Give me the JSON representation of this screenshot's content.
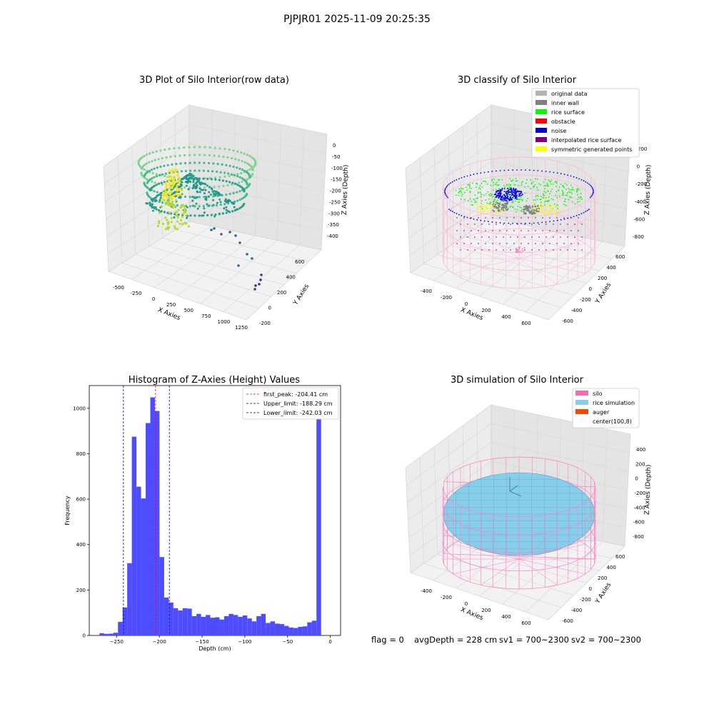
{
  "figure_title": "PJPJR01 2025-11-09 20:25:35",
  "chart_data": [
    {
      "type": "scatter",
      "subtype": "3d",
      "title": "3D Plot of Silo Interior(row data)",
      "xlabel": "X Axies",
      "ylabel": "Y Axies",
      "zlabel": "Z Axies (Depth)",
      "x_ticks": [
        -500,
        -250,
        0,
        250,
        500,
        750,
        1000,
        1250
      ],
      "y_ticks": [
        -200,
        0,
        200,
        400,
        600
      ],
      "z_ticks": [
        0,
        -50,
        -100,
        -150,
        -200,
        -250,
        -300,
        -350,
        -400
      ],
      "colormap": "viridis"
    },
    {
      "type": "scatter",
      "subtype": "3d",
      "title": "3D classify of Silo Interior",
      "xlabel": "X Axies",
      "ylabel": "Y Axies",
      "zlabel": "Z Axies (Depth)",
      "x_ticks": [
        -400,
        -200,
        0,
        200,
        400,
        600
      ],
      "y_ticks": [
        -600,
        -400,
        -200,
        0,
        200,
        400,
        600
      ],
      "z_ticks": [
        200,
        0,
        -200,
        -400,
        -600,
        -800
      ],
      "legend_position": "top-right",
      "legend": [
        {
          "label": "original data",
          "color": "#b3b3b3"
        },
        {
          "label": "inner wall",
          "color": "#808080"
        },
        {
          "label": "rice surface",
          "color": "#00ff00"
        },
        {
          "label": "obstacle",
          "color": "#ff0000"
        },
        {
          "label": "noise",
          "color": "#0000ee"
        },
        {
          "label": "interpolated rice surface",
          "color": "#800080"
        },
        {
          "label": "symmetric generated points",
          "color": "#ffff00"
        }
      ]
    },
    {
      "type": "bar",
      "subtype": "histogram",
      "title": "Histogram of Z-Axies (Height) Values",
      "xlabel": "Depth (cm)",
      "ylabel": "Frequency",
      "xlim": [
        -282,
        12
      ],
      "ylim": [
        0,
        1100
      ],
      "x_ticks": [
        -250,
        -200,
        -150,
        -100,
        -50,
        0
      ],
      "y_ticks": [
        0,
        200,
        400,
        600,
        800,
        1000
      ],
      "bar_color": "#4d4dff",
      "bin_start": -270,
      "bin_width": 5.4,
      "values": [
        10,
        7,
        8,
        12,
        60,
        123,
        318,
        875,
        655,
        603,
        935,
        1048,
        988,
        345,
        167,
        145,
        120,
        110,
        120,
        118,
        85,
        95,
        82,
        90,
        78,
        80,
        70,
        85,
        95,
        90,
        82,
        88,
        75,
        62,
        85,
        95,
        55,
        62,
        52,
        50,
        42,
        35,
        33,
        38,
        40,
        58,
        65,
        995
      ],
      "legend_position": "top-right",
      "vlines": [
        {
          "label": "first_peak: -204.41 cm",
          "x": -204.41,
          "color": "#ff0000"
        },
        {
          "label": "Upper_limit: -188.29 cm",
          "x": -188.29,
          "color": "#0000aa"
        },
        {
          "label": "Lower_limit: -242.03 cm",
          "x": -242.03,
          "color": "#0000aa"
        }
      ]
    },
    {
      "type": "scatter",
      "subtype": "3d",
      "title": "3D simulation of Silo Interior",
      "xlabel": "X Axies",
      "ylabel": "Y Axies",
      "zlabel": "Z Axies (Depth)",
      "x_ticks": [
        -400,
        -200,
        0,
        200,
        400,
        600
      ],
      "y_ticks": [
        -600,
        -400,
        -200,
        0,
        200,
        400,
        600
      ],
      "z_ticks": [
        400,
        200,
        0,
        -200,
        -400,
        -600,
        -800
      ],
      "legend_position": "top-right",
      "legend": [
        {
          "label": "silo",
          "color": "#ff69b4"
        },
        {
          "label": "rice simulation",
          "color": "#87ceeb"
        },
        {
          "label": "auger",
          "color": "#ff4500"
        },
        {
          "label": "center(100,8)",
          "color": "#ffffff"
        }
      ]
    }
  ],
  "status": {
    "flag": "flag = 0",
    "avg_depth": "avgDepth = 228 cm",
    "sv1": "sv1 = 700~2300",
    "sv2": "sv2 = 700~2300"
  }
}
